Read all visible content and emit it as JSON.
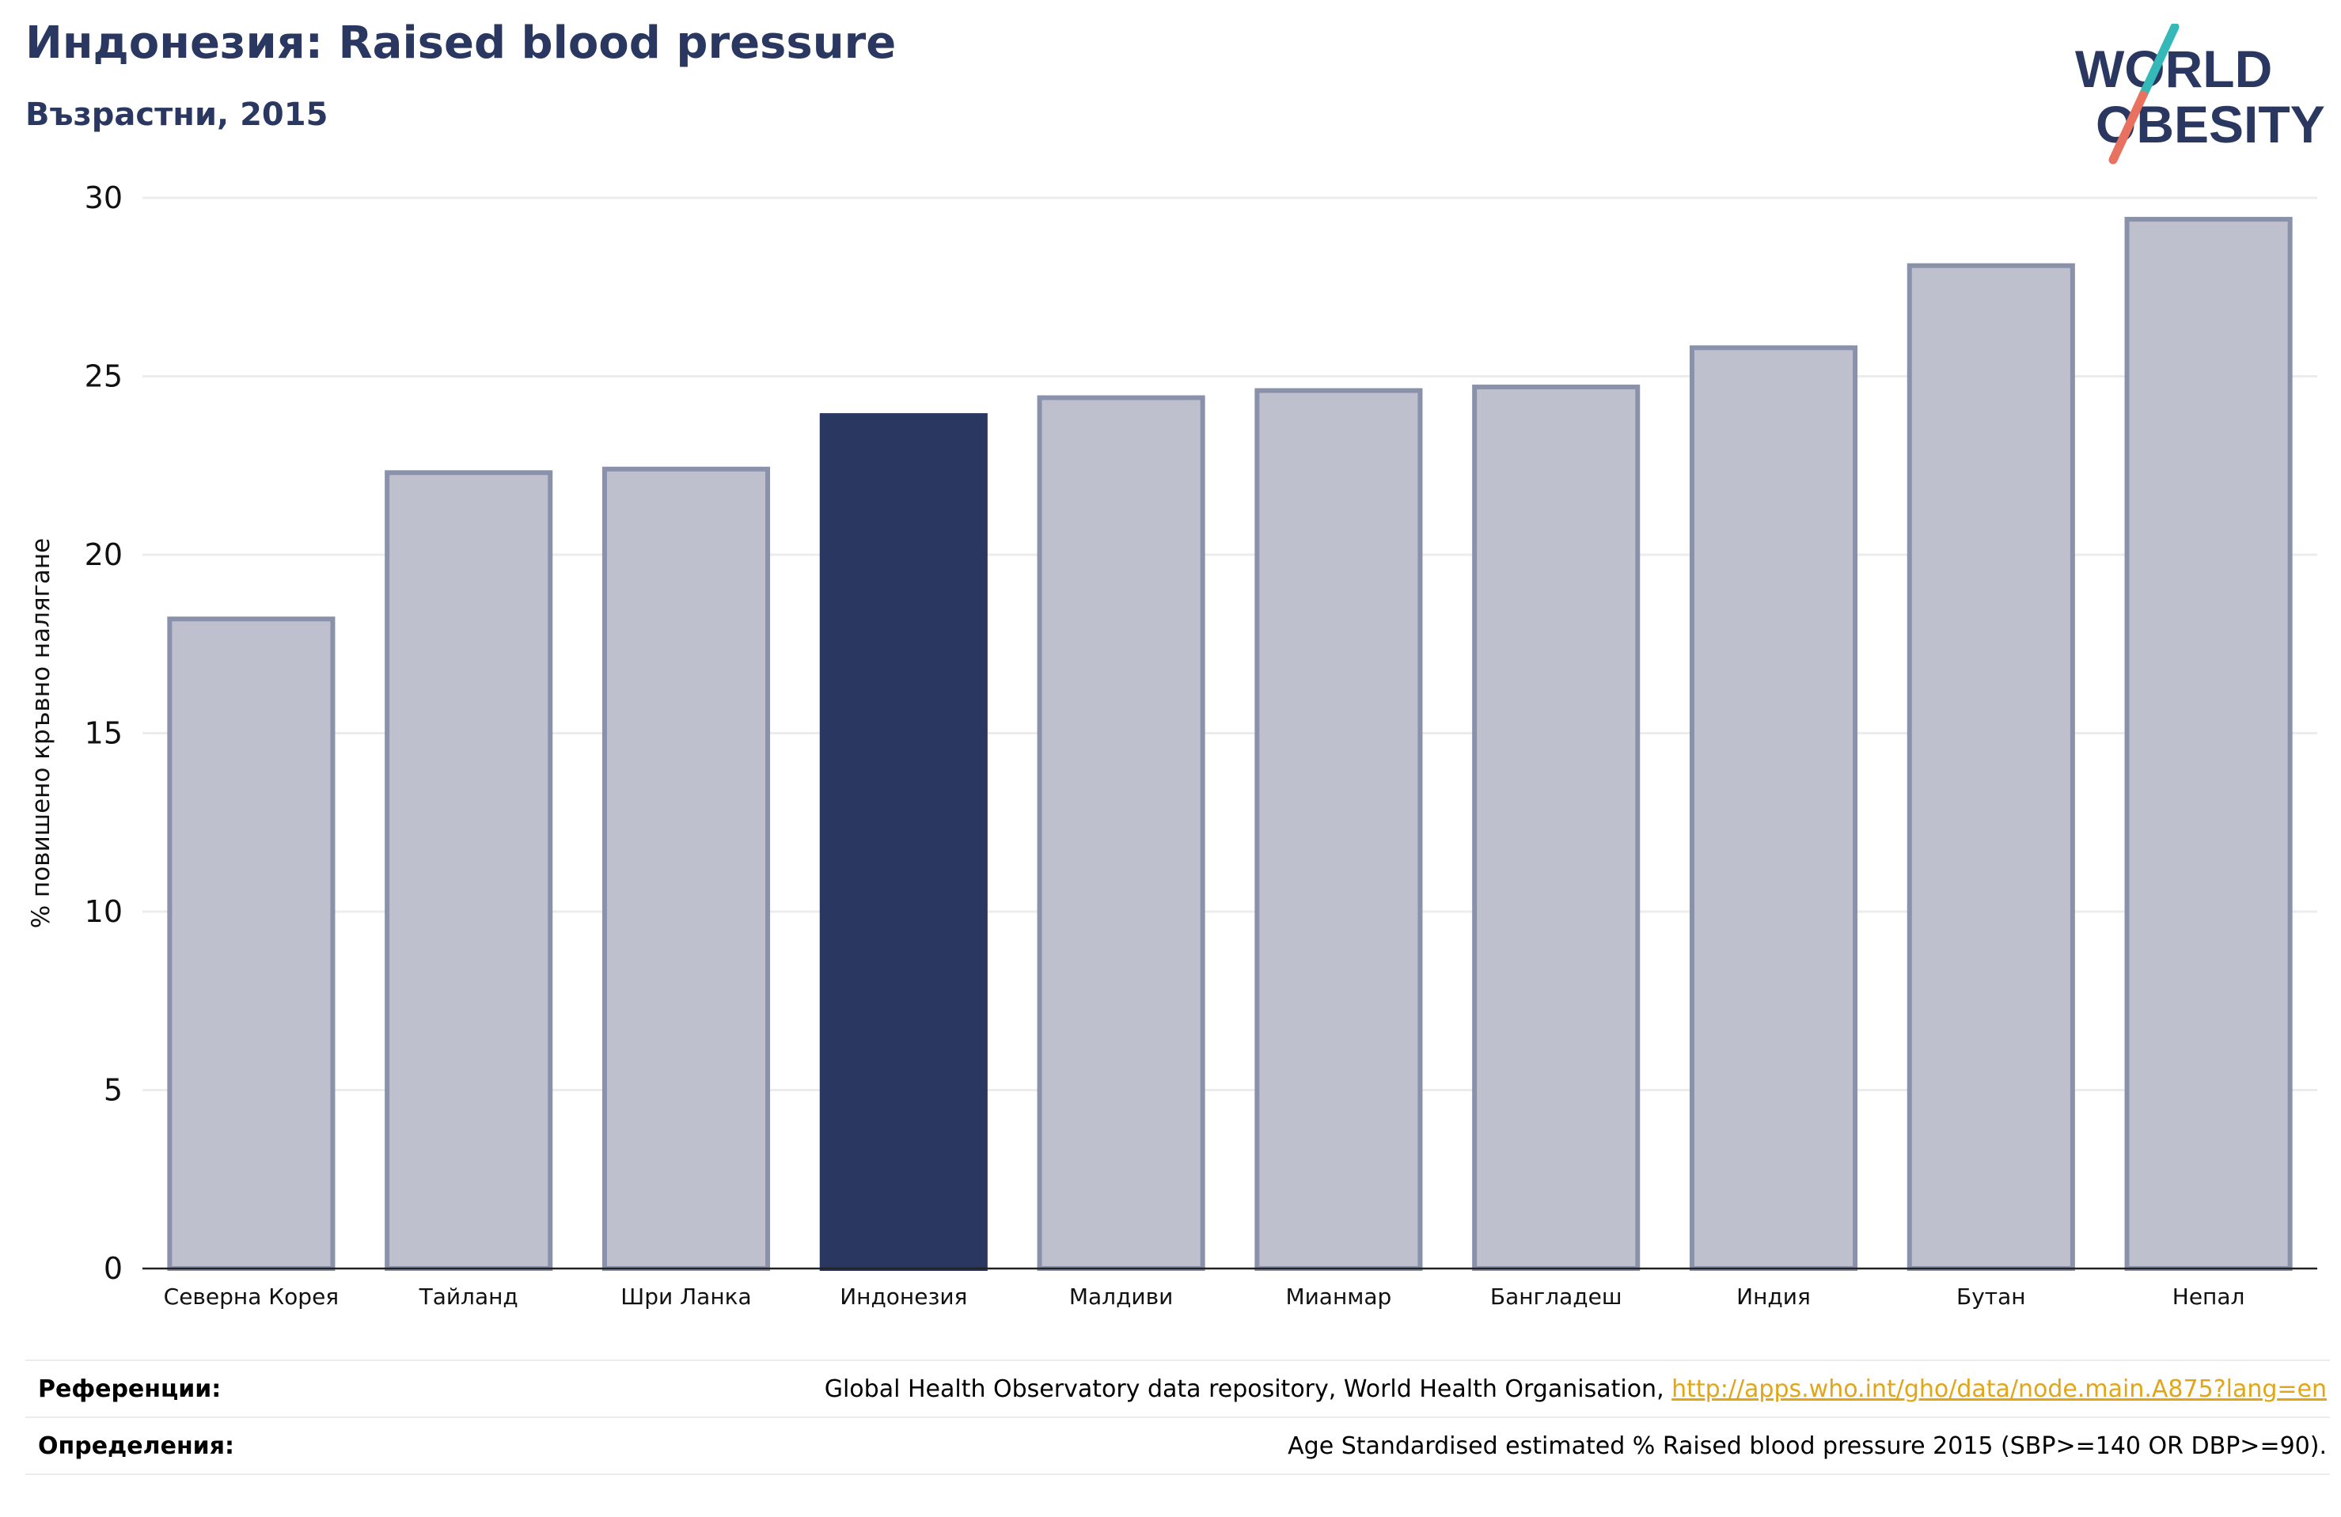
{
  "header": {
    "title": "Индонезия: Raised blood pressure",
    "subtitle": "Възрастни, 2015"
  },
  "logo": {
    "line1": "WORLD",
    "line2": "OBESITY",
    "colors": {
      "text": "#2a3760",
      "slash_teal": "#35b8b8",
      "slash_coral": "#e8715f"
    }
  },
  "colors": {
    "highlight": "#2a3760",
    "bar_fill": "#bec1cd",
    "bar_stroke": "#8a91aa",
    "grid": "#ececec",
    "link": "#e2a516"
  },
  "chart_data": {
    "type": "bar",
    "title": "Индонезия: Raised blood pressure",
    "subtitle": "Възрастни, 2015",
    "xlabel": "",
    "ylabel": "% повишено кръвно налягане",
    "ylim": [
      0,
      30
    ],
    "yticks": [
      0,
      5,
      10,
      15,
      20,
      25,
      30
    ],
    "grid": true,
    "highlight_category": "Индонезия",
    "categories": [
      "Северна Корея",
      "Тайланд",
      "Шри Ланка",
      "Индонезия",
      "Малдиви",
      "Мианмар",
      "Бангладеш",
      "Индия",
      "Бутан",
      "Непал"
    ],
    "values": [
      18.2,
      22.3,
      22.4,
      23.9,
      24.4,
      24.6,
      24.7,
      25.8,
      28.1,
      29.4
    ]
  },
  "footer": {
    "references_label": "Референции:",
    "references_text": "Global Health Observatory data repository, World Health Organisation, ",
    "references_link": "http://apps.who.int/gho/data/node.main.A875?lang=en",
    "definitions_label": "Определения:",
    "definitions_text": "Age Standardised estimated % Raised blood pressure 2015 (SBP>=140 OR DBP>=90)."
  }
}
